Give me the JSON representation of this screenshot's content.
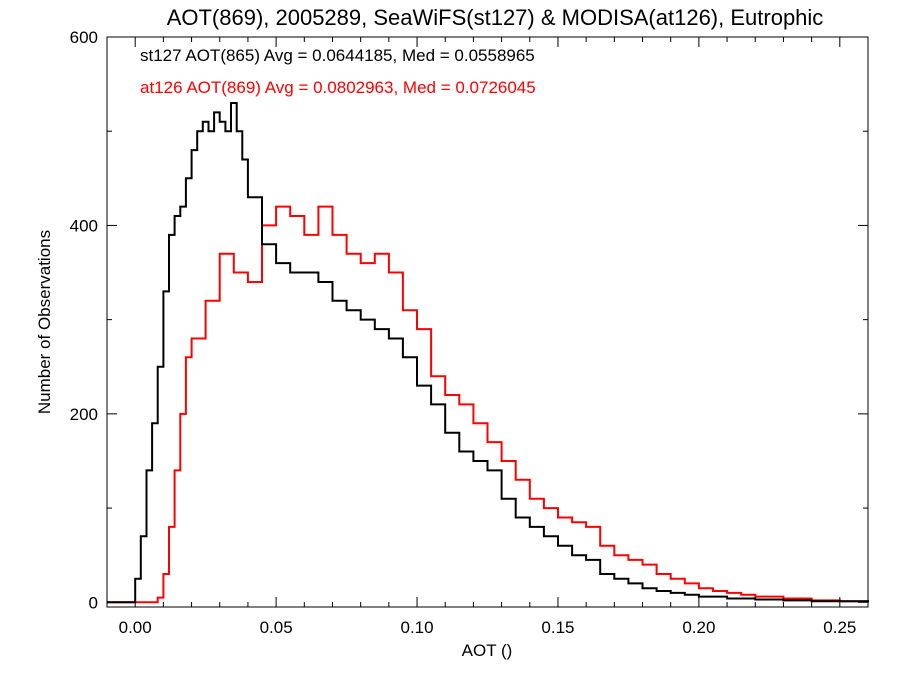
{
  "chart_data": {
    "type": "line",
    "title": "AOT(869), 2005289, SeaWiFS(st127) & MODISA(at126), Eutrophic",
    "xlabel": "AOT ()",
    "ylabel": "Number of Observations",
    "xlim": [
      -0.01,
      0.26
    ],
    "ylim": [
      -5,
      600
    ],
    "xticks": [
      0.0,
      0.05,
      0.1,
      0.15,
      0.2,
      0.25
    ],
    "xtick_labels": [
      "0.00",
      "0.05",
      "0.10",
      "0.15",
      "0.20",
      "0.25"
    ],
    "yticks": [
      0,
      200,
      400,
      600
    ],
    "ytick_labels": [
      "0",
      "200",
      "400",
      "600"
    ],
    "grid": false,
    "legend_position": "top-left",
    "series": [
      {
        "name": "st127 AOT(865) Avg = 0.0644185, Med = 0.0558965",
        "color": "#000000",
        "x": [
          0.0,
          0.002,
          0.004,
          0.006,
          0.008,
          0.01,
          0.012,
          0.014,
          0.016,
          0.018,
          0.02,
          0.022,
          0.024,
          0.026,
          0.028,
          0.03,
          0.032,
          0.034,
          0.036,
          0.038,
          0.04,
          0.045,
          0.05,
          0.055,
          0.06,
          0.065,
          0.07,
          0.075,
          0.08,
          0.085,
          0.09,
          0.095,
          0.1,
          0.105,
          0.11,
          0.115,
          0.12,
          0.125,
          0.13,
          0.135,
          0.14,
          0.145,
          0.15,
          0.155,
          0.16,
          0.165,
          0.17,
          0.175,
          0.18,
          0.185,
          0.19,
          0.195,
          0.2,
          0.21,
          0.22,
          0.23,
          0.24,
          0.25,
          0.26
        ],
        "values": [
          25,
          70,
          140,
          190,
          250,
          330,
          390,
          410,
          420,
          450,
          480,
          500,
          510,
          500,
          520,
          510,
          500,
          530,
          500,
          470,
          430,
          380,
          360,
          350,
          350,
          340,
          320,
          310,
          300,
          290,
          280,
          260,
          230,
          210,
          180,
          160,
          150,
          140,
          110,
          90,
          80,
          70,
          60,
          50,
          45,
          30,
          25,
          20,
          15,
          12,
          10,
          8,
          6,
          4,
          3,
          2,
          1,
          1,
          0
        ]
      },
      {
        "name": "at126 AOT(869) Avg = 0.0802963, Med = 0.0726045",
        "color": "#ff0000",
        "x": [
          0.0,
          0.004,
          0.008,
          0.01,
          0.012,
          0.014,
          0.016,
          0.018,
          0.02,
          0.025,
          0.03,
          0.035,
          0.04,
          0.045,
          0.05,
          0.055,
          0.06,
          0.065,
          0.07,
          0.075,
          0.08,
          0.085,
          0.09,
          0.095,
          0.1,
          0.105,
          0.11,
          0.115,
          0.12,
          0.125,
          0.13,
          0.135,
          0.14,
          0.145,
          0.15,
          0.155,
          0.16,
          0.165,
          0.17,
          0.175,
          0.18,
          0.185,
          0.19,
          0.195,
          0.2,
          0.205,
          0.21,
          0.215,
          0.22,
          0.23,
          0.24,
          0.25,
          0.26
        ],
        "values": [
          0,
          0,
          5,
          30,
          80,
          140,
          200,
          260,
          280,
          320,
          370,
          350,
          340,
          400,
          420,
          410,
          390,
          420,
          390,
          370,
          360,
          370,
          350,
          310,
          290,
          240,
          220,
          210,
          190,
          170,
          150,
          130,
          110,
          100,
          90,
          85,
          80,
          60,
          50,
          45,
          40,
          30,
          25,
          20,
          15,
          12,
          10,
          8,
          6,
          4,
          2,
          1,
          0
        ]
      }
    ]
  }
}
